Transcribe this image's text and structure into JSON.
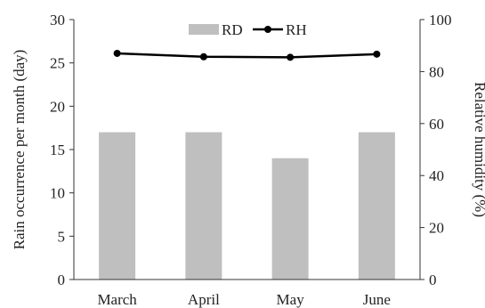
{
  "chart_data": {
    "type": "bar",
    "categories": [
      "March",
      "April",
      "May",
      "June"
    ],
    "series": [
      {
        "name": "RD",
        "kind": "bar",
        "axis": "left",
        "values": [
          17,
          17,
          14,
          17
        ],
        "color": "#bfbfbf"
      },
      {
        "name": "RH",
        "kind": "line",
        "axis": "right",
        "values": [
          87,
          85.7,
          85.5,
          86.7
        ],
        "color": "#000000"
      }
    ],
    "ylabel": "Rain occurrence per month (day)",
    "ylim": [
      0,
      30
    ],
    "yticks": [
      "0",
      "5",
      "10",
      "15",
      "20",
      "25",
      "30"
    ],
    "y2label": "Relative humidity (%)",
    "y2lim": [
      0,
      100
    ],
    "y2ticks": [
      "0",
      "20",
      "40",
      "60",
      "80",
      "100"
    ],
    "legend": [
      "RD",
      "RH"
    ],
    "legend_position": "top-center",
    "grid": false
  }
}
